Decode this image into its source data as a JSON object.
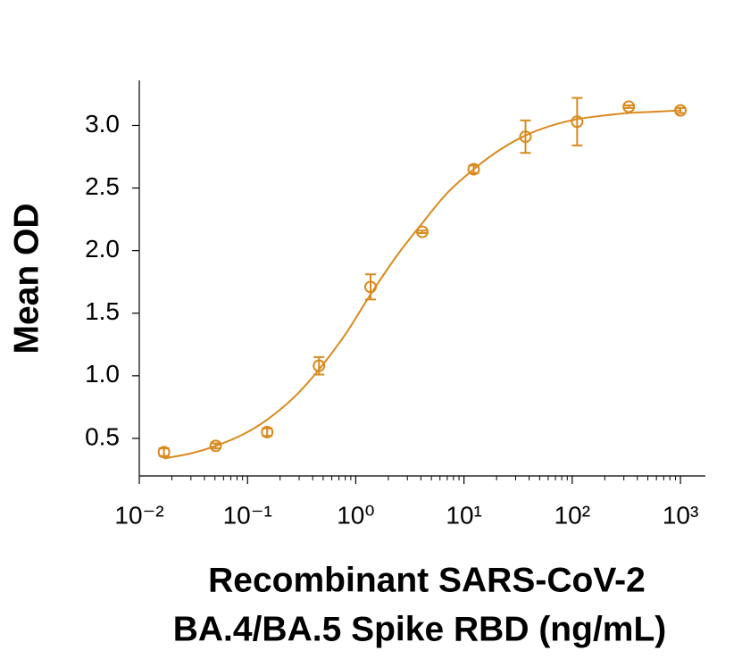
{
  "chart_data": {
    "type": "scatter",
    "xlabel_lines": [
      "Recombinant SARS-CoV-2",
      "BA.4/BA.5 Spike RBD (ng/mL)"
    ],
    "ylabel": "Mean OD",
    "log_x": true,
    "minor_ticks": true,
    "color": "#d98a1e",
    "series": [
      {
        "kind": "points",
        "x": [
          0.0169,
          0.0508,
          0.152,
          0.457,
          1.37,
          4.12,
          12.3,
          37,
          111,
          333,
          1000
        ],
        "values": [
          0.39,
          0.44,
          0.55,
          1.08,
          1.71,
          2.15,
          2.65,
          2.91,
          3.03,
          3.15,
          3.12
        ],
        "errors": [
          0.03,
          0.02,
          0.03,
          0.07,
          0.1,
          0.01,
          0.03,
          0.13,
          0.19,
          0.01,
          0.02
        ]
      },
      {
        "kind": "fit",
        "x": [
          0.0169,
          0.03,
          0.0508,
          0.09,
          0.152,
          0.27,
          0.457,
          0.8,
          1.37,
          2.4,
          4.12,
          7,
          12.3,
          21,
          37,
          65,
          111,
          200,
          333,
          600,
          1000
        ],
        "values": [
          0.34,
          0.38,
          0.44,
          0.53,
          0.65,
          0.83,
          1.05,
          1.33,
          1.65,
          1.96,
          2.22,
          2.46,
          2.65,
          2.8,
          2.92,
          3.0,
          3.05,
          3.08,
          3.1,
          3.11,
          3.12
        ]
      }
    ],
    "xlim": [
      0.01,
      1700
    ],
    "ylim": [
      0.2,
      3.36
    ],
    "xticks": [
      {
        "value": 0.01,
        "label": "10⁻²"
      },
      {
        "value": 0.1,
        "label": "10⁻¹"
      },
      {
        "value": 1,
        "label": "10⁰"
      },
      {
        "value": 10,
        "label": "10¹"
      },
      {
        "value": 100,
        "label": "10²"
      },
      {
        "value": 1000,
        "label": "10³"
      }
    ],
    "yticks": [
      {
        "value": 0.5,
        "label": "0.5"
      },
      {
        "value": 1,
        "label": "1.0"
      },
      {
        "value": 1.5,
        "label": "1.5"
      },
      {
        "value": 2,
        "label": "2.0"
      },
      {
        "value": 2.5,
        "label": "2.5"
      },
      {
        "value": 3,
        "label": "3.0"
      }
    ]
  }
}
